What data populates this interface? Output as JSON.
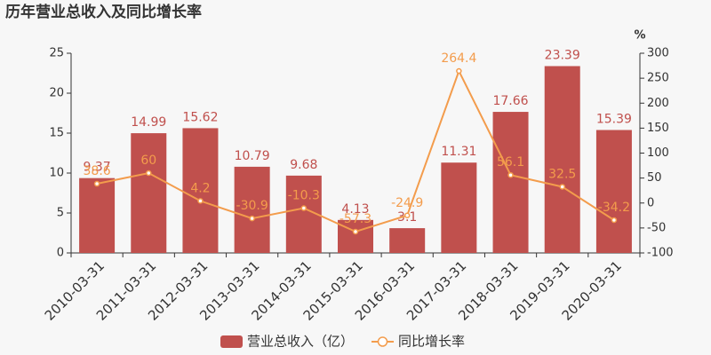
{
  "chart_data": {
    "type": "bar",
    "title": "历年营业总收入及同比增长率",
    "y2_label": "%",
    "categories": [
      "2010-03-31",
      "2011-03-31",
      "2012-03-31",
      "2013-03-31",
      "2014-03-31",
      "2015-03-31",
      "2016-03-31",
      "2017-03-31",
      "2018-03-31",
      "2019-03-31",
      "2020-03-31"
    ],
    "series": [
      {
        "name": "营业总收入（亿）",
        "type": "bar",
        "axis": "y",
        "color": "#c0504d",
        "values": [
          9.37,
          14.99,
          15.62,
          10.79,
          9.68,
          4.13,
          3.1,
          11.31,
          17.66,
          23.39,
          15.39
        ]
      },
      {
        "name": "同比增长率",
        "type": "line",
        "axis": "y2",
        "color": "#f39c4c",
        "values": [
          38.6,
          60,
          4.2,
          -30.9,
          -10.3,
          -57.3,
          -24.9,
          264.4,
          56.1,
          32.5,
          -34.2
        ]
      }
    ],
    "ylim": [
      0,
      25
    ],
    "yticks": [
      0,
      5,
      10,
      15,
      20,
      25
    ],
    "y2lim": [
      -100,
      300
    ],
    "y2ticks": [
      -100,
      -50,
      0,
      50,
      100,
      150,
      200,
      250,
      300
    ],
    "legend": "bottom"
  }
}
